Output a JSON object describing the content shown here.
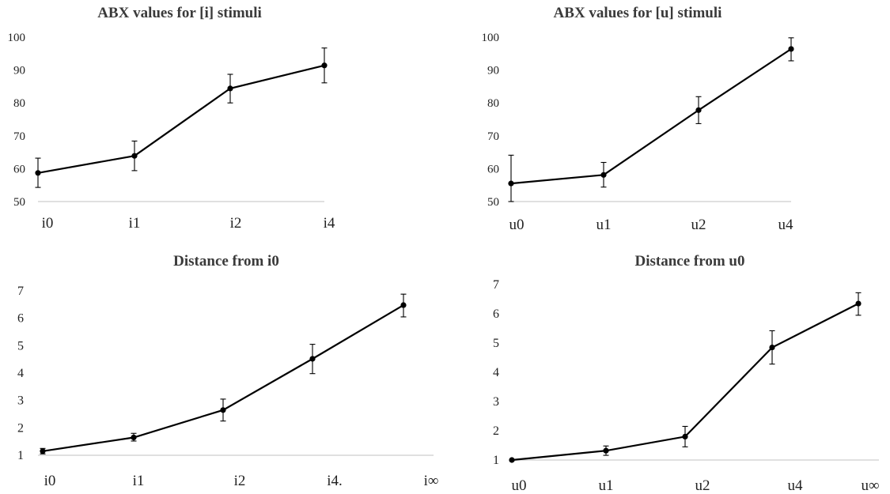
{
  "chart_data": [
    {
      "type": "line",
      "title": "ABX values for [i] stimuli",
      "categories": [
        "i0",
        "i1",
        "i2",
        "i4"
      ],
      "yticks": [
        "50",
        "60",
        "70",
        "80",
        "90",
        "100"
      ],
      "ylim": [
        50,
        100
      ],
      "values": [
        58.7,
        63.9,
        84.4,
        91.4
      ],
      "error_low": [
        54.3,
        59.4,
        80.0,
        86.1
      ],
      "error_high": [
        63.2,
        68.4,
        88.7,
        96.7
      ],
      "grid": false,
      "line_color": "#000000"
    },
    {
      "type": "line",
      "title": "ABX values for [u] stimuli",
      "categories": [
        "u0",
        "u1",
        "u2",
        "u4"
      ],
      "yticks": [
        "50",
        "60",
        "70",
        "80",
        "90",
        "100"
      ],
      "ylim": [
        50,
        100
      ],
      "values": [
        55.5,
        58.1,
        77.8,
        96.4
      ],
      "error_low": [
        50.0,
        54.4,
        73.7,
        92.8
      ],
      "error_high": [
        64.1,
        61.9,
        81.9,
        99.8
      ],
      "grid": false,
      "line_color": "#000000"
    },
    {
      "type": "line",
      "title": "Distance from i0",
      "categories": [
        "i0",
        "i1",
        "i2",
        "i4.",
        "i∞"
      ],
      "yticks": [
        "1",
        "2",
        "3",
        "4",
        "5",
        "6",
        "7"
      ],
      "ylim": [
        1,
        7
      ],
      "values": [
        1.15,
        1.65,
        2.65,
        4.52,
        6.48
      ],
      "error_low": [
        1.05,
        1.52,
        2.25,
        3.98,
        6.05
      ],
      "error_high": [
        1.25,
        1.8,
        3.05,
        5.05,
        6.88
      ],
      "grid": false,
      "line_color": "#000000"
    },
    {
      "type": "line",
      "title": "Distance from u0",
      "categories": [
        "u0",
        "u1",
        "u2",
        "u4",
        "u∞"
      ],
      "yticks": [
        "1",
        "2",
        "3",
        "4",
        "5",
        "6",
        "7"
      ],
      "ylim": [
        1,
        7
      ],
      "values": [
        1.0,
        1.32,
        1.8,
        4.85,
        6.35
      ],
      "error_low": [
        0.98,
        1.16,
        1.45,
        4.28,
        5.95
      ],
      "error_high": [
        1.02,
        1.48,
        2.15,
        5.42,
        6.72
      ],
      "grid": false,
      "line_color": "#000000"
    }
  ]
}
